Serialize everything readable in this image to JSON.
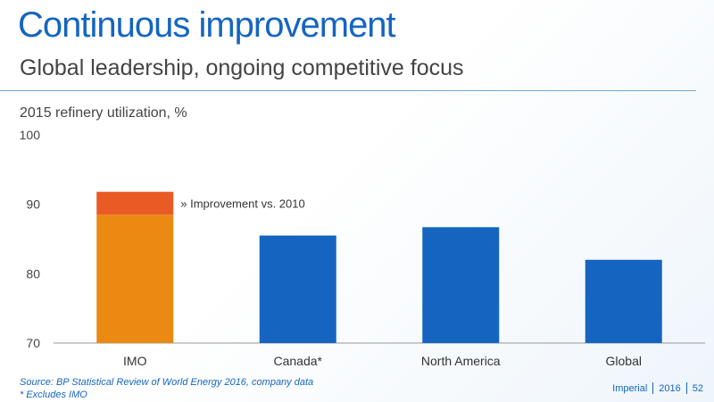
{
  "header": {
    "title": "Continuous improvement",
    "subtitle": "Global leadership, ongoing competitive focus"
  },
  "chart_data": {
    "type": "bar",
    "title": "2015 refinery utilization, %",
    "categories": [
      "IMO",
      "Canada*",
      "North America",
      "Global"
    ],
    "series": [
      {
        "values": [
          88.5,
          85.5,
          86.7,
          82
        ]
      },
      {
        "name": "» Improvement vs. 2010",
        "values": [
          3.3,
          0,
          0,
          0
        ]
      }
    ],
    "ylim": [
      70,
      100
    ],
    "yticks": [
      70,
      80,
      90,
      100
    ],
    "grid": false,
    "annotation": "» Improvement vs. 2010",
    "colors": {
      "imo_base": "#ea8a12",
      "imo_improvement": "#ea5a24",
      "others": "#1565c0",
      "axis": "#999999"
    }
  },
  "footnotes": {
    "source": "Source: BP Statistical Review of World Energy 2016, company data",
    "note": "* Excludes IMO"
  },
  "footer": {
    "company": "Imperial",
    "year": "2016",
    "page": "52"
  }
}
